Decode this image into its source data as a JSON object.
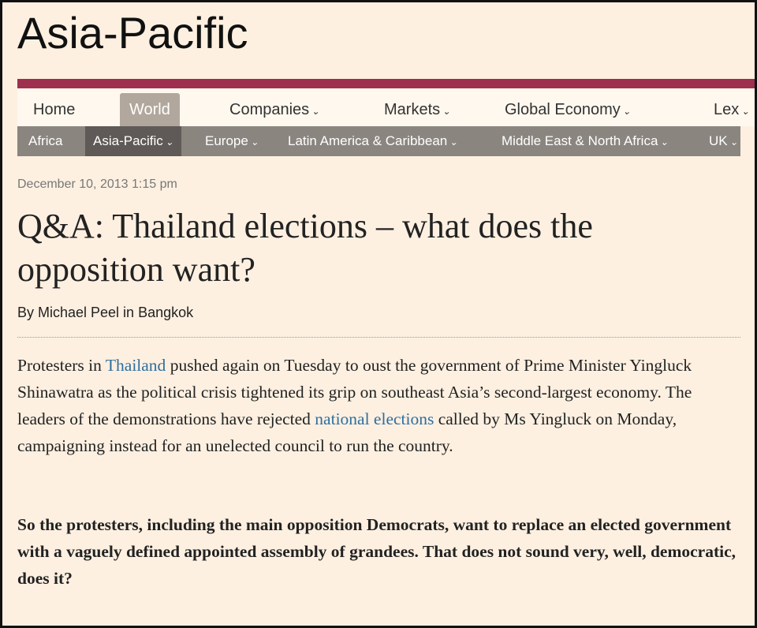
{
  "header": {
    "title": "Asia-Pacific"
  },
  "nav": {
    "primary": [
      "Home",
      "World",
      "Companies",
      "Markets",
      "Global Economy",
      "Lex"
    ],
    "secondary": [
      "Africa",
      "Asia-Pacific",
      "Europe",
      "Latin America & Caribbean",
      "Middle East & North Africa",
      "UK"
    ]
  },
  "article": {
    "date": "December 10, 2013 1:15 pm",
    "headline": "Q&A: Thailand elections – what does the opposition want?",
    "byline": "By Michael Peel in Bangkok",
    "paragraphs": [
      [
        "Protesters in ",
        "Thailand",
        " pushed again on Tuesday to oust the government of Prime Minister Yingluck Shinawatra as the political crisis tightened its grip on southeast Asia’s second-largest economy. The leaders of the demonstrations have rejected ",
        "national elections",
        " called by Ms Yingluck on Monday, campaigning instead for an unelected council to run the country."
      ],
      [
        "So the protesters, including the main opposition Democrats, want to replace an elected government with a vaguely defined appointed assembly of grandees. That does not sound very, well, democratic, does it?"
      ]
    ]
  }
}
